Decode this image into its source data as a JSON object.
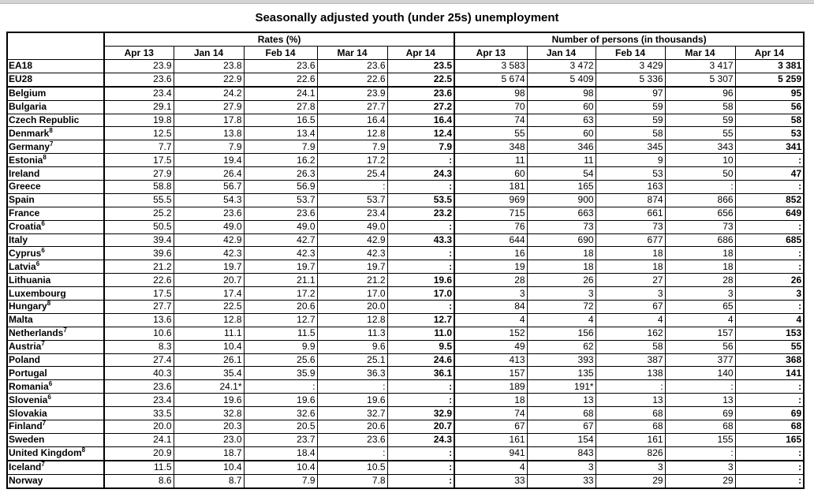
{
  "title": "Seasonally adjusted youth (under 25s) unemployment",
  "groups": {
    "rates": "Rates (%)",
    "persons": "Number of persons (in thousands)"
  },
  "months": [
    "Apr 13",
    "Jan 14",
    "Feb 14",
    "Mar 14",
    "Apr 14"
  ],
  "rows": [
    {
      "country": "EA18",
      "note": "",
      "rates": [
        "23.9",
        "23.8",
        "23.6",
        "23.6",
        "23.5"
      ],
      "persons": [
        "3 583",
        "3 472",
        "3 429",
        "3 417",
        "3 381"
      ]
    },
    {
      "country": "EU28",
      "note": "",
      "rates": [
        "23.6",
        "22.9",
        "22.6",
        "22.6",
        "22.5"
      ],
      "persons": [
        "5 674",
        "5 409",
        "5 336",
        "5 307",
        "5 259"
      ]
    },
    {
      "country": "Belgium",
      "note": "",
      "rates": [
        "23.4",
        "24.2",
        "24.1",
        "23.9",
        "23.6"
      ],
      "persons": [
        "98",
        "98",
        "97",
        "96",
        "95"
      ]
    },
    {
      "country": "Bulgaria",
      "note": "",
      "rates": [
        "29.1",
        "27.9",
        "27.8",
        "27.7",
        "27.2"
      ],
      "persons": [
        "70",
        "60",
        "59",
        "58",
        "56"
      ]
    },
    {
      "country": "Czech Republic",
      "note": "",
      "rates": [
        "19.8",
        "17.8",
        "16.5",
        "16.4",
        "16.4"
      ],
      "persons": [
        "74",
        "63",
        "59",
        "59",
        "58"
      ]
    },
    {
      "country": "Denmark",
      "note": "8",
      "rates": [
        "12.5",
        "13.8",
        "13.4",
        "12.8",
        "12.4"
      ],
      "persons": [
        "55",
        "60",
        "58",
        "55",
        "53"
      ]
    },
    {
      "country": "Germany",
      "note": "7",
      "rates": [
        "7.7",
        "7.9",
        "7.9",
        "7.9",
        "7.9"
      ],
      "persons": [
        "348",
        "346",
        "345",
        "343",
        "341"
      ]
    },
    {
      "country": "Estonia",
      "note": "8",
      "rates": [
        "17.5",
        "19.4",
        "16.2",
        "17.2",
        ":"
      ],
      "persons": [
        "11",
        "11",
        "9",
        "10",
        ":"
      ]
    },
    {
      "country": "Ireland",
      "note": "",
      "rates": [
        "27.9",
        "26.4",
        "26.3",
        "25.4",
        "24.3"
      ],
      "persons": [
        "60",
        "54",
        "53",
        "50",
        "47"
      ]
    },
    {
      "country": "Greece",
      "note": "",
      "rates": [
        "58.8",
        "56.7",
        "56.9",
        ":",
        ":"
      ],
      "persons": [
        "181",
        "165",
        "163",
        ":",
        ":"
      ]
    },
    {
      "country": "Spain",
      "note": "",
      "rates": [
        "55.5",
        "54.3",
        "53.7",
        "53.7",
        "53.5"
      ],
      "persons": [
        "969",
        "900",
        "874",
        "866",
        "852"
      ]
    },
    {
      "country": "France",
      "note": "",
      "rates": [
        "25.2",
        "23.6",
        "23.6",
        "23.4",
        "23.2"
      ],
      "persons": [
        "715",
        "663",
        "661",
        "656",
        "649"
      ]
    },
    {
      "country": "Croatia",
      "note": "6",
      "rates": [
        "50.5",
        "49.0",
        "49.0",
        "49.0",
        ":"
      ],
      "persons": [
        "76",
        "73",
        "73",
        "73",
        ":"
      ]
    },
    {
      "country": "Italy",
      "note": "",
      "rates": [
        "39.4",
        "42.9",
        "42.7",
        "42.9",
        "43.3"
      ],
      "persons": [
        "644",
        "690",
        "677",
        "686",
        "685"
      ]
    },
    {
      "country": "Cyprus",
      "note": "6",
      "rates": [
        "39.6",
        "42.3",
        "42.3",
        "42.3",
        ":"
      ],
      "persons": [
        "16",
        "18",
        "18",
        "18",
        ":"
      ]
    },
    {
      "country": "Latvia",
      "note": "6",
      "rates": [
        "21.2",
        "19.7",
        "19.7",
        "19.7",
        ":"
      ],
      "persons": [
        "19",
        "18",
        "18",
        "18",
        ":"
      ]
    },
    {
      "country": "Lithuania",
      "note": "",
      "rates": [
        "22.6",
        "20.7",
        "21.1",
        "21.2",
        "19.6"
      ],
      "persons": [
        "28",
        "26",
        "27",
        "28",
        "26"
      ]
    },
    {
      "country": "Luxembourg",
      "note": "",
      "rates": [
        "17.5",
        "17.4",
        "17.2",
        "17.0",
        "17.0"
      ],
      "persons": [
        "3",
        "3",
        "3",
        "3",
        "3"
      ]
    },
    {
      "country": "Hungary",
      "note": "8",
      "rates": [
        "27.7",
        "22.5",
        "20.6",
        "20.0",
        ":"
      ],
      "persons": [
        "84",
        "72",
        "67",
        "65",
        ":"
      ]
    },
    {
      "country": "Malta",
      "note": "",
      "rates": [
        "13.6",
        "12.8",
        "12.7",
        "12.8",
        "12.7"
      ],
      "persons": [
        "4",
        "4",
        "4",
        "4",
        "4"
      ]
    },
    {
      "country": "Netherlands",
      "note": "7",
      "rates": [
        "10.6",
        "11.1",
        "11.5",
        "11.3",
        "11.0"
      ],
      "persons": [
        "152",
        "156",
        "162",
        "157",
        "153"
      ]
    },
    {
      "country": "Austria",
      "note": "7",
      "rates": [
        "8.3",
        "10.4",
        "9.9",
        "9.6",
        "9.5"
      ],
      "persons": [
        "49",
        "62",
        "58",
        "56",
        "55"
      ]
    },
    {
      "country": "Poland",
      "note": "",
      "rates": [
        "27.4",
        "26.1",
        "25.6",
        "25.1",
        "24.6"
      ],
      "persons": [
        "413",
        "393",
        "387",
        "377",
        "368"
      ]
    },
    {
      "country": "Portugal",
      "note": "",
      "rates": [
        "40.3",
        "35.4",
        "35.9",
        "36.3",
        "36.1"
      ],
      "persons": [
        "157",
        "135",
        "138",
        "140",
        "141"
      ]
    },
    {
      "country": "Romania",
      "note": "6",
      "rates": [
        "23.6",
        "24.1*",
        ":",
        ":",
        ":"
      ],
      "persons": [
        "189",
        "191*",
        ":",
        ":",
        ":"
      ]
    },
    {
      "country": "Slovenia",
      "note": "6",
      "rates": [
        "23.4",
        "19.6",
        "19.6",
        "19.6",
        ":"
      ],
      "persons": [
        "18",
        "13",
        "13",
        "13",
        ":"
      ]
    },
    {
      "country": "Slovakia",
      "note": "",
      "rates": [
        "33.5",
        "32.8",
        "32.6",
        "32.7",
        "32.9"
      ],
      "persons": [
        "74",
        "68",
        "68",
        "69",
        "69"
      ]
    },
    {
      "country": "Finland",
      "note": "7",
      "rates": [
        "20.0",
        "20.3",
        "20.5",
        "20.6",
        "20.7"
      ],
      "persons": [
        "67",
        "67",
        "68",
        "68",
        "68"
      ]
    },
    {
      "country": "Sweden",
      "note": "",
      "rates": [
        "24.1",
        "23.0",
        "23.7",
        "23.6",
        "24.3"
      ],
      "persons": [
        "161",
        "154",
        "161",
        "155",
        "165"
      ]
    },
    {
      "country": "United Kingdom",
      "note": "8",
      "rates": [
        "20.9",
        "18.7",
        "18.4",
        ":",
        ":"
      ],
      "persons": [
        "941",
        "843",
        "826",
        ":",
        ":"
      ]
    },
    {
      "country": "Iceland",
      "note": "7",
      "rates": [
        "11.5",
        "10.4",
        "10.4",
        "10.5",
        ":"
      ],
      "persons": [
        "4",
        "3",
        "3",
        "3",
        ":"
      ]
    },
    {
      "country": "Norway",
      "note": "",
      "rates": [
        "8.6",
        "8.7",
        "7.9",
        "7.8",
        ":"
      ],
      "persons": [
        "33",
        "33",
        "29",
        "29",
        ":"
      ]
    }
  ]
}
